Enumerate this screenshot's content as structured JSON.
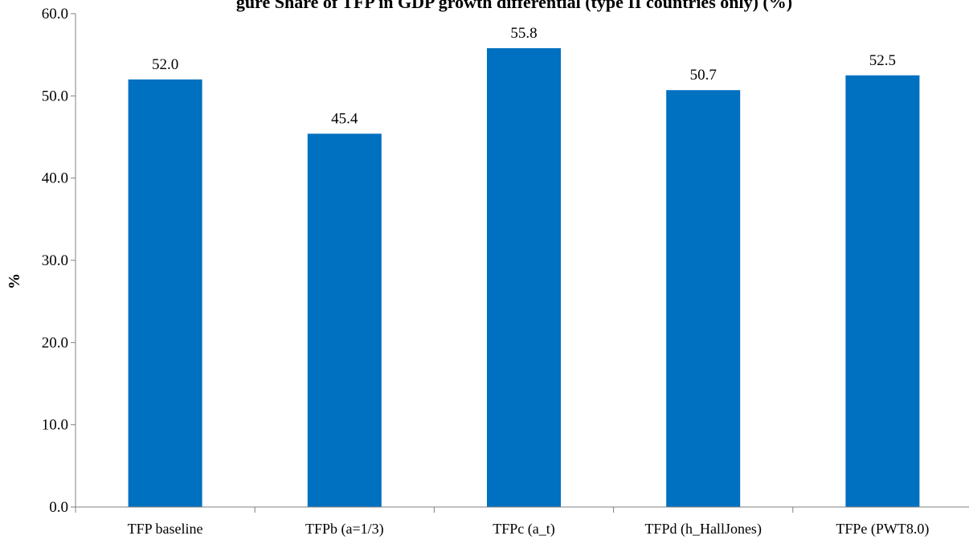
{
  "chart_data": {
    "type": "bar",
    "title": "gure  Share of TFP in GDP growth differential (type II countries only) (%)",
    "xlabel": "",
    "ylabel": "%",
    "categories": [
      "TFP baseline",
      "TFPb (a=1/3)",
      "TFPc (a_t)",
      "TFPd (h_HallJones)",
      "TFPe (PWT8.0)"
    ],
    "values": [
      52.0,
      45.4,
      55.8,
      50.7,
      52.5
    ],
    "data_labels": [
      "52.0",
      "45.4",
      "55.8",
      "50.7",
      "52.5"
    ],
    "ylim": [
      0,
      60
    ],
    "yticks": [
      "0.0",
      "10.0",
      "20.0",
      "30.0",
      "40.0",
      "50.0",
      "60.0"
    ],
    "grid": false,
    "legend": "none",
    "bar_color": "#0070C0",
    "axis_color": "#808080"
  }
}
